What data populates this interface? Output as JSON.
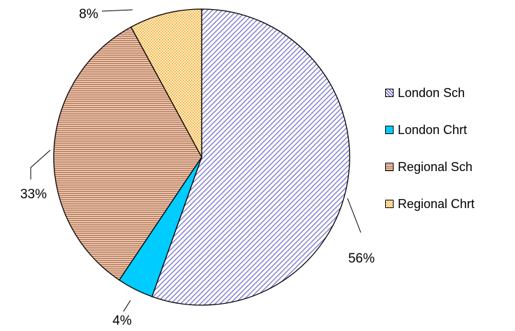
{
  "chart_data": {
    "type": "pie",
    "title": "",
    "categories": [
      "London Sch",
      "London Chrt",
      "Regional Sch",
      "Regional Chrt"
    ],
    "values": [
      56,
      4,
      33,
      8
    ],
    "labels": [
      "56%",
      "4%",
      "33%",
      "8%"
    ],
    "colors": [
      "#9999ff",
      "#00ccff",
      "#cc8866",
      "#ffcc77"
    ],
    "legend_position": "right"
  }
}
